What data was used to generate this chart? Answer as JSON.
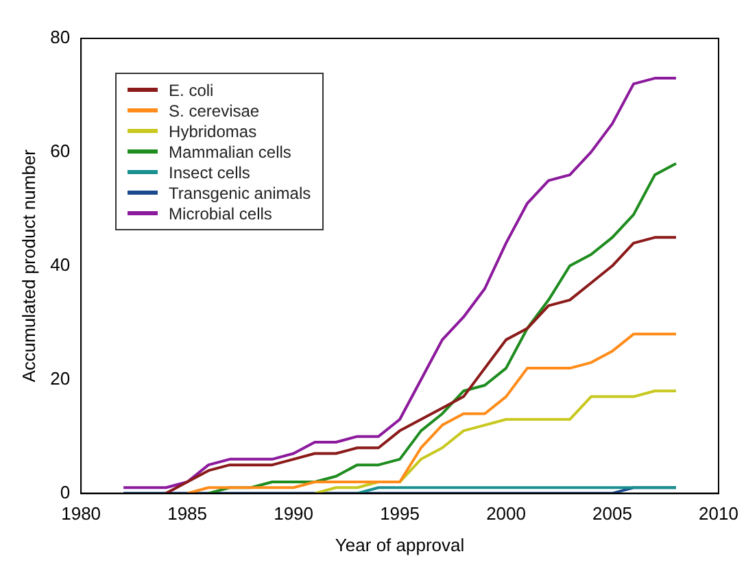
{
  "chart_data": {
    "type": "line",
    "xlabel": "Year of approval",
    "ylabel": "Accumulated product number",
    "x": [
      1982,
      1983,
      1984,
      1985,
      1986,
      1987,
      1988,
      1989,
      1990,
      1991,
      1992,
      1993,
      1994,
      1995,
      1996,
      1997,
      1998,
      1999,
      2000,
      2001,
      2002,
      2003,
      2004,
      2005,
      2006,
      2007,
      2008
    ],
    "xlim": [
      1980,
      2010
    ],
    "xticks": [
      1980,
      1985,
      1990,
      1995,
      2000,
      2005,
      2010
    ],
    "ylim": [
      0,
      80
    ],
    "yticks": [
      0,
      20,
      40,
      60,
      80
    ],
    "grid": false,
    "legend": "top left",
    "marker": "none",
    "line_style": "solid",
    "series": [
      {
        "name": "E. coli",
        "color": "#8b1a1a",
        "values": [
          null,
          null,
          0,
          2,
          4,
          5,
          5,
          5,
          6,
          7,
          7,
          8,
          8,
          11,
          13,
          15,
          17,
          22,
          27,
          29,
          33,
          34,
          37,
          40,
          44,
          45,
          45
        ]
      },
      {
        "name": "S. cerevisae",
        "color": "#ff8c1a",
        "values": [
          null,
          null,
          null,
          0,
          1,
          1,
          1,
          1,
          1,
          2,
          2,
          2,
          2,
          2,
          8,
          12,
          14,
          14,
          17,
          22,
          22,
          22,
          23,
          25,
          28,
          28,
          28
        ]
      },
      {
        "name": "Hybridomas",
        "color": "#c8c820",
        "values": [
          null,
          null,
          null,
          null,
          null,
          null,
          null,
          null,
          null,
          0,
          1,
          1,
          2,
          2,
          6,
          8,
          11,
          12,
          13,
          13,
          13,
          13,
          17,
          17,
          17,
          18,
          18
        ]
      },
      {
        "name": "Mammalian cells",
        "color": "#1e8c1e",
        "values": [
          null,
          null,
          null,
          null,
          0,
          1,
          1,
          2,
          2,
          2,
          3,
          5,
          5,
          6,
          11,
          14,
          18,
          19,
          22,
          29,
          34,
          40,
          42,
          45,
          49,
          56,
          58
        ]
      },
      {
        "name": "Insect cells",
        "color": "#1a9090",
        "values": [
          null,
          null,
          null,
          null,
          null,
          null,
          null,
          null,
          null,
          null,
          null,
          0,
          1,
          1,
          1,
          1,
          1,
          1,
          1,
          1,
          1,
          1,
          1,
          1,
          1,
          1,
          1
        ]
      },
      {
        "name": "Transgenic animals",
        "color": "#1a4a8c",
        "values": [
          0,
          0,
          0,
          0,
          0,
          0,
          0,
          0,
          0,
          0,
          0,
          0,
          0,
          0,
          0,
          0,
          0,
          0,
          0,
          0,
          0,
          0,
          0,
          0,
          1,
          1,
          1
        ]
      },
      {
        "name": "Microbial cells",
        "color": "#8c1a9c",
        "values": [
          1,
          1,
          1,
          2,
          5,
          6,
          6,
          6,
          7,
          9,
          9,
          10,
          10,
          13,
          20,
          27,
          31,
          36,
          44,
          51,
          55,
          56,
          60,
          65,
          72,
          73,
          73
        ]
      }
    ]
  }
}
